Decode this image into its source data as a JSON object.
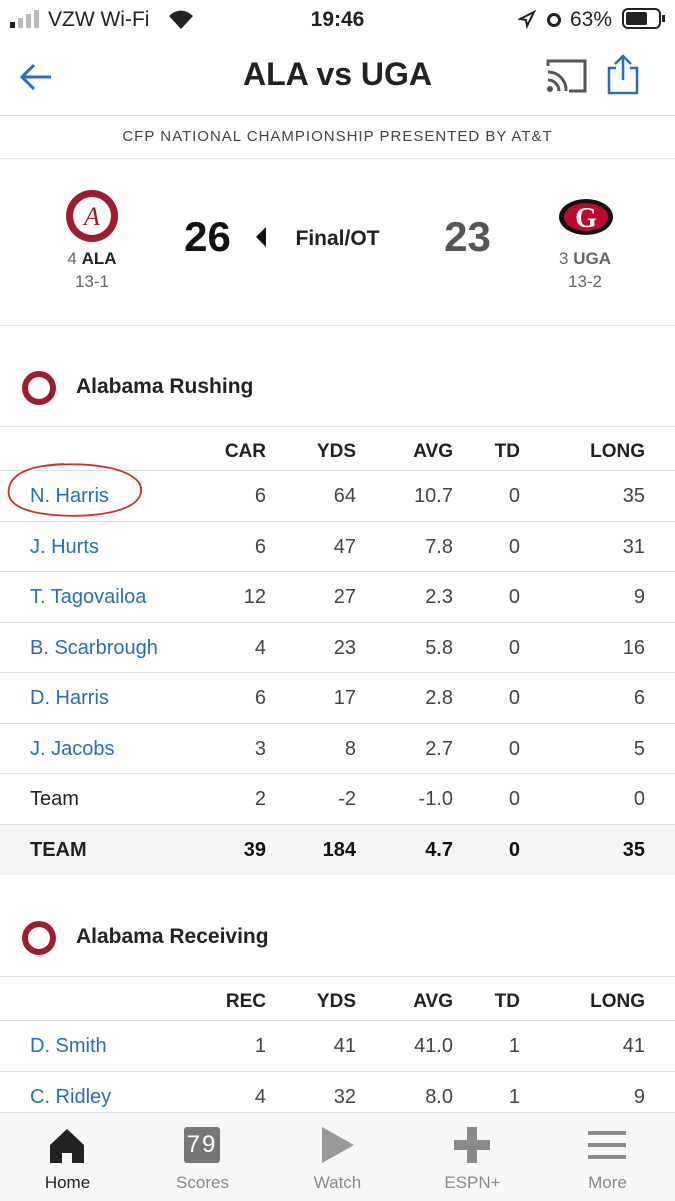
{
  "status_bar": {
    "carrier": "VZW Wi-Fi",
    "time": "19:46",
    "battery": "63%"
  },
  "header": {
    "title": "ALA vs UGA"
  },
  "banner": "CFP NATIONAL CHAMPIONSHIP PRESENTED BY AT&T",
  "scoreboard": {
    "home": {
      "rank": "4",
      "abbr": "ALA",
      "record": "13-1",
      "score": "26"
    },
    "status": "Final/OT",
    "away": {
      "rank": "3",
      "abbr": "UGA",
      "record": "13-2",
      "score": "23"
    }
  },
  "sections": [
    {
      "title": "Alabama Rushing",
      "columns": [
        "CAR",
        "YDS",
        "AVG",
        "TD",
        "LONG"
      ],
      "rows": [
        [
          "N. Harris",
          "6",
          "64",
          "10.7",
          "0",
          "35"
        ],
        [
          "J. Hurts",
          "6",
          "47",
          "7.8",
          "0",
          "31"
        ],
        [
          "T. Tagovailoa",
          "12",
          "27",
          "2.3",
          "0",
          "9"
        ],
        [
          "B. Scarbrough",
          "4",
          "23",
          "5.8",
          "0",
          "16"
        ],
        [
          "D. Harris",
          "6",
          "17",
          "2.8",
          "0",
          "6"
        ],
        [
          "J. Jacobs",
          "3",
          "8",
          "2.7",
          "0",
          "5"
        ]
      ],
      "team_row": [
        "Team",
        "2",
        "-2",
        "-1.0",
        "0",
        "0"
      ],
      "total_row": [
        "TEAM",
        "39",
        "184",
        "4.7",
        "0",
        "35"
      ]
    },
    {
      "title": "Alabama Receiving",
      "columns": [
        "REC",
        "YDS",
        "AVG",
        "TD",
        "LONG"
      ],
      "rows": [
        [
          "D. Smith",
          "1",
          "41",
          "41.0",
          "1",
          "41"
        ],
        [
          "C. Ridley",
          "4",
          "32",
          "8.0",
          "1",
          "9"
        ]
      ]
    }
  ],
  "tab_bar": {
    "scores_icon": "79",
    "tabs": [
      "Home",
      "Scores",
      "Watch",
      "ESPN+",
      "More"
    ]
  }
}
